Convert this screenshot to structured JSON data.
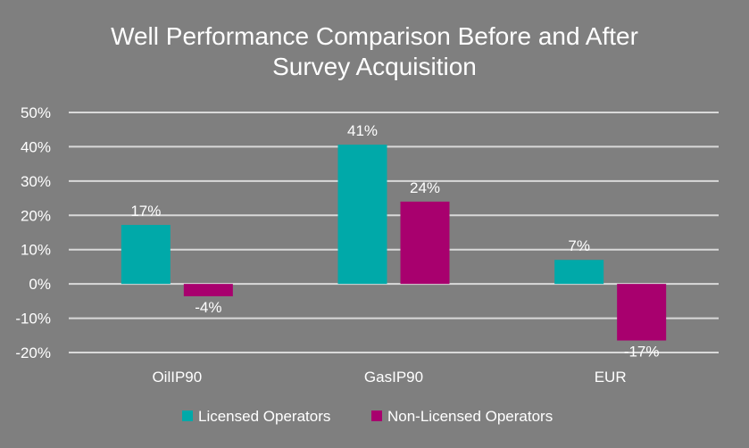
{
  "chart_data": {
    "type": "bar",
    "title_lines": [
      "Well Performance Comparison Before and After",
      "Survey Acquisition"
    ],
    "categories": [
      "OilIP90",
      "GasIP90",
      "EUR"
    ],
    "series": [
      {
        "name": "Licensed Operators",
        "color": "#00a9a9",
        "values": [
          17.2,
          40.6,
          7.0
        ],
        "labels": [
          "17%",
          "41%",
          "7%"
        ]
      },
      {
        "name": "Non-Licensed Operators",
        "color": "#a8006e",
        "values": [
          -3.6,
          24.0,
          -16.5
        ],
        "labels": [
          "-4%",
          "24%",
          "-17%"
        ]
      }
    ],
    "ylim": [
      -20,
      50
    ],
    "yticks": [
      50,
      40,
      30,
      20,
      10,
      0,
      -10,
      -20
    ],
    "ytick_labels": [
      "50%",
      "40%",
      "30%",
      "20%",
      "10%",
      "0%",
      "-10%",
      "-20%"
    ],
    "grid": true,
    "gridline_color": "#d9d9d9",
    "background": "#7f7f7f",
    "legend_position": "bottom"
  }
}
